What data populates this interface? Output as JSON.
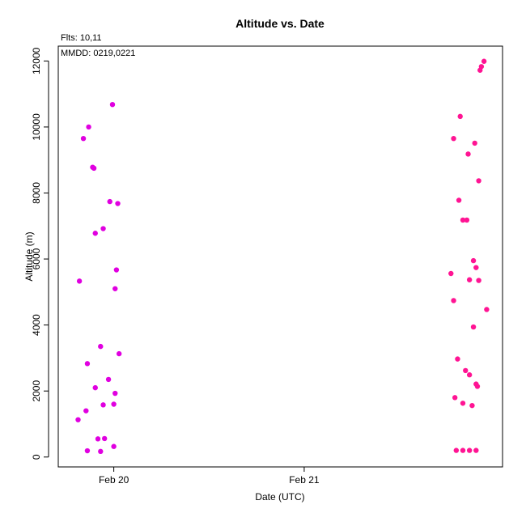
{
  "chart_data": {
    "type": "scatter",
    "title": "Altitude  vs. Date",
    "xlabel": "Date (UTC)",
    "ylabel": "Altitude (m)",
    "annotation_top": "Flts: 10,11",
    "annotation_inside": "MMDD: 0219,0221",
    "x_tick_labels": [
      "Feb 20",
      "Feb 21"
    ],
    "y_ticks": [
      0,
      2000,
      4000,
      6000,
      8000,
      10000,
      12000
    ],
    "ylim": [
      -300,
      12450
    ],
    "grid": false,
    "series": [
      {
        "color": "#e000e0",
        "points": [
          [
            "2019-02-19T19:40",
            5330
          ],
          [
            "2019-02-19T20:10",
            9650
          ],
          [
            "2019-02-19T20:50",
            10000
          ],
          [
            "2019-02-19T21:20",
            8780
          ],
          [
            "2019-02-19T21:30",
            8750
          ],
          [
            "2019-02-19T21:40",
            6780
          ],
          [
            "2019-02-19T22:40",
            6920
          ],
          [
            "2019-02-19T23:30",
            7740
          ],
          [
            "2019-02-20T00:30",
            7680
          ],
          [
            "2019-02-19T23:50",
            10680
          ],
          [
            "2019-02-20T00:10",
            5100
          ],
          [
            "2019-02-20T00:20",
            5670
          ],
          [
            "2019-02-19T22:20",
            3350
          ],
          [
            "2019-02-19T20:40",
            2830
          ],
          [
            "2019-02-20T00:40",
            3130
          ],
          [
            "2019-02-19T23:20",
            2350
          ],
          [
            "2019-02-19T21:40",
            2100
          ],
          [
            "2019-02-20T00:10",
            1930
          ],
          [
            "2019-02-19T22:40",
            1580
          ],
          [
            "2019-02-20T00:00",
            1600
          ],
          [
            "2019-02-19T20:30",
            1400
          ],
          [
            "2019-02-19T19:30",
            1130
          ],
          [
            "2019-02-19T22:00",
            550
          ],
          [
            "2019-02-19T22:50",
            560
          ],
          [
            "2019-02-20T00:00",
            320
          ],
          [
            "2019-02-19T20:40",
            190
          ],
          [
            "2019-02-19T22:20",
            170
          ]
        ]
      },
      {
        "color": "#ff1493",
        "points": [
          [
            "2019-02-21T18:30",
            5560
          ],
          [
            "2019-02-21T18:50",
            9650
          ],
          [
            "2019-02-21T19:40",
            10320
          ],
          [
            "2019-02-21T20:40",
            9180
          ],
          [
            "2019-02-21T21:30",
            9510
          ],
          [
            "2019-02-21T22:00",
            8370
          ],
          [
            "2019-02-21T19:30",
            7780
          ],
          [
            "2019-02-21T20:00",
            7180
          ],
          [
            "2019-02-21T20:30",
            7180
          ],
          [
            "2019-02-21T21:20",
            5950
          ],
          [
            "2019-02-21T21:40",
            5740
          ],
          [
            "2019-02-21T20:50",
            5370
          ],
          [
            "2019-02-21T22:00",
            5350
          ],
          [
            "2019-02-21T18:50",
            4740
          ],
          [
            "2019-02-21T23:00",
            4470
          ],
          [
            "2019-02-21T21:20",
            3940
          ],
          [
            "2019-02-21T19:20",
            2970
          ],
          [
            "2019-02-21T20:20",
            2620
          ],
          [
            "2019-02-21T20:50",
            2490
          ],
          [
            "2019-02-21T21:40",
            2210
          ],
          [
            "2019-02-21T21:50",
            2140
          ],
          [
            "2019-02-21T19:00",
            1800
          ],
          [
            "2019-02-21T20:00",
            1630
          ],
          [
            "2019-02-21T21:10",
            1560
          ],
          [
            "2019-02-21T19:10",
            200
          ],
          [
            "2019-02-21T20:00",
            200
          ],
          [
            "2019-02-21T20:50",
            200
          ],
          [
            "2019-02-21T21:40",
            200
          ],
          [
            "2019-02-21T22:10",
            11720
          ],
          [
            "2019-02-21T22:20",
            11830
          ],
          [
            "2019-02-21T22:40",
            11990
          ]
        ]
      }
    ]
  }
}
